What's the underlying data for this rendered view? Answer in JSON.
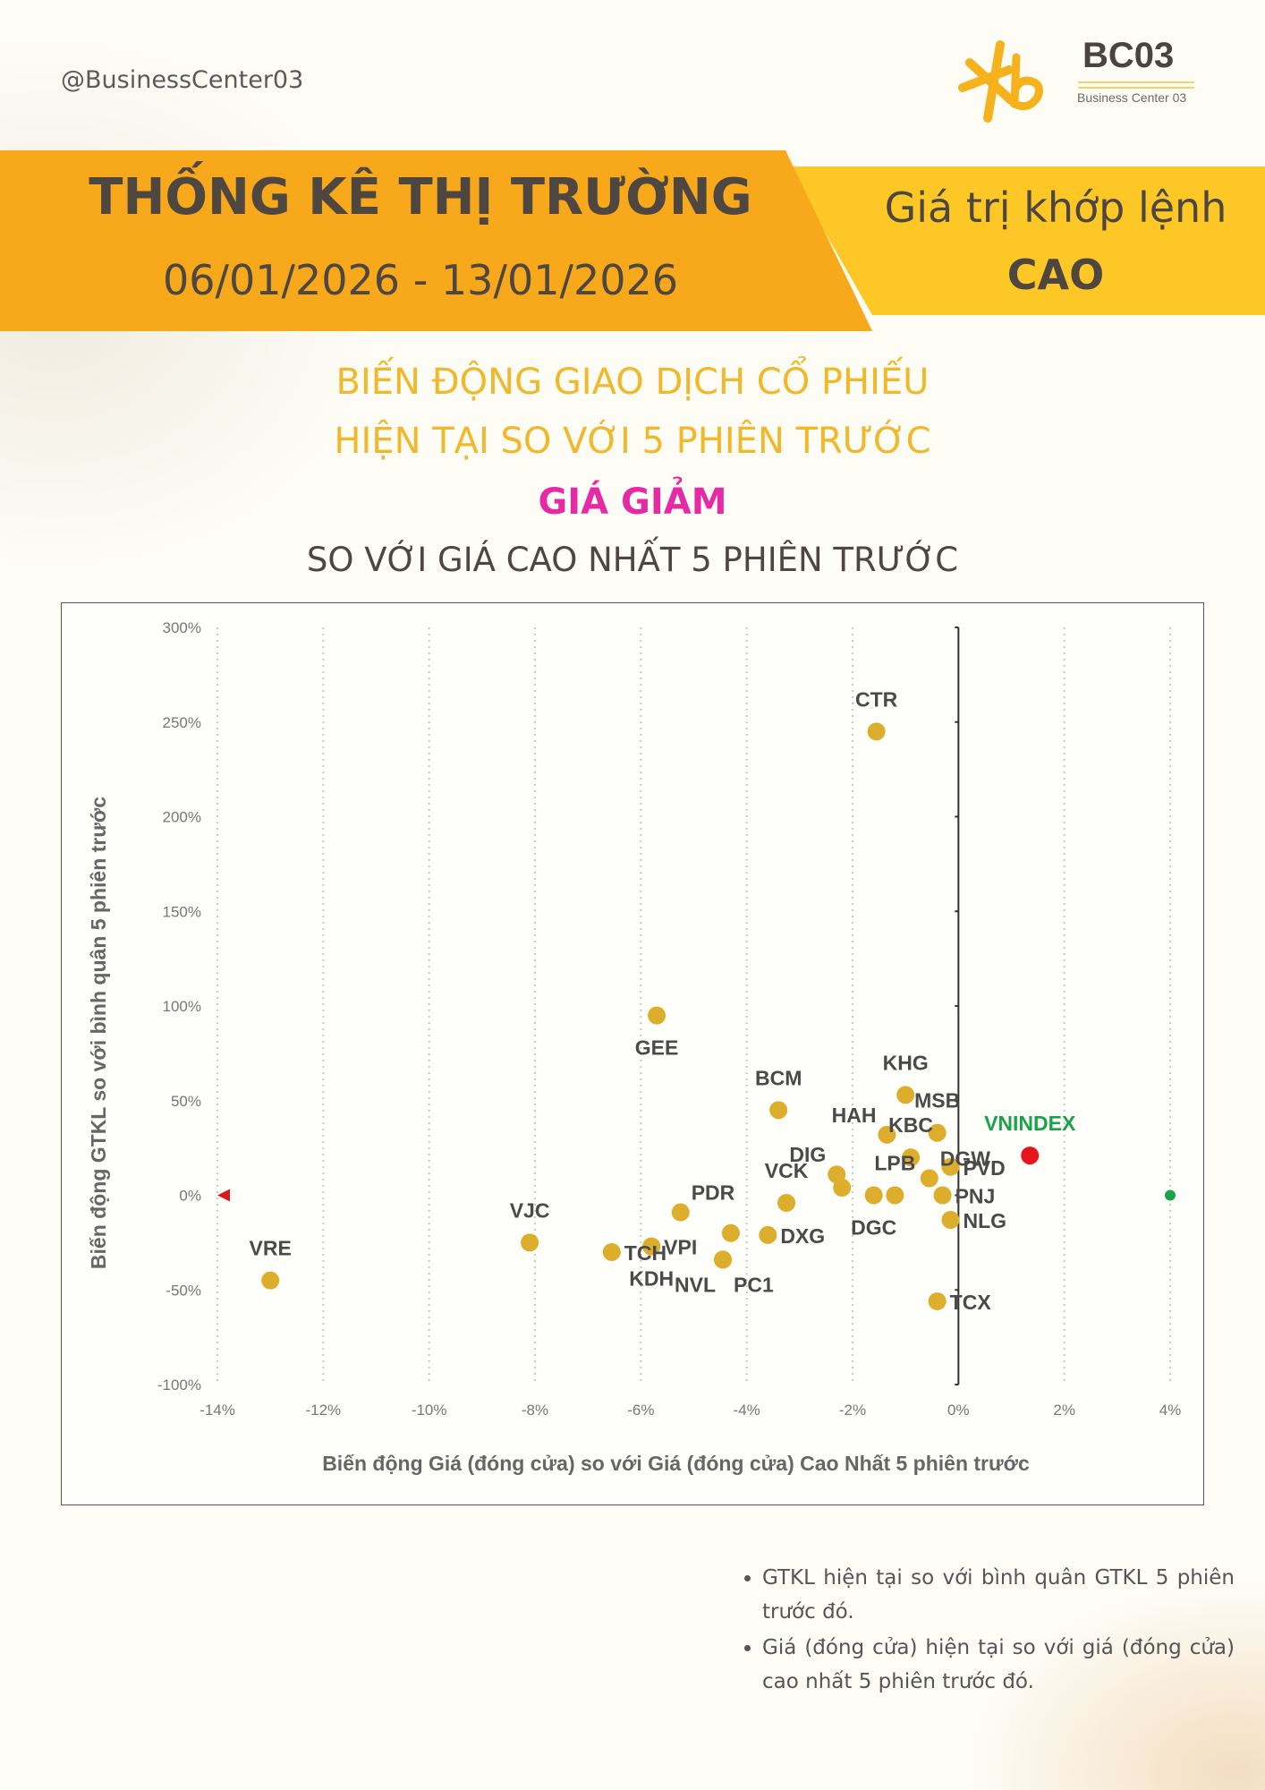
{
  "header": {
    "handle": "@BusinessCenter03",
    "logo_text": "BC03",
    "logo_subtext": "Business Center 03"
  },
  "banner": {
    "title": "THỐNG KÊ THỊ TRƯỜNG",
    "date_range": "06/01/2026 - 13/01/2026",
    "right_line1": "Giá trị khớp lệnh",
    "right_line2": "CAO"
  },
  "headings": {
    "line1": "BIẾN ĐỘNG GIAO DỊCH CỔ PHIẾU",
    "line2": "HIỆN TẠI SO VỚI 5 PHIÊN TRƯỚC",
    "highlight": "GIÁ GIẢM",
    "line4": "SO VỚI GIÁ CAO NHẤT 5 PHIÊN TRƯỚC"
  },
  "colors": {
    "banner_orange": "#f7a81b",
    "banner_yellow": "#fdc826",
    "point": "#dcae2c",
    "highlight_point": "#e8141c",
    "highlight_label": "#1aa34a",
    "heading_gold": "#f0b82a",
    "heading_pink": "#e52aa6"
  },
  "chart_data": {
    "type": "scatter",
    "title": "",
    "xlabel": "Biến động Giá (đóng cửa) so với Giá (đóng cửa) Cao Nhất 5 phiên trước",
    "ylabel": "Biến động GTKL so với bình quân 5 phiên trước",
    "xlim": [
      -14,
      4
    ],
    "ylim": [
      -100,
      300
    ],
    "x_ticks": [
      -14,
      -12,
      -10,
      -8,
      -6,
      -4,
      -2,
      0,
      2,
      4
    ],
    "x_tick_labels": [
      "-14%",
      "-12%",
      "-10%",
      "-8%",
      "-6%",
      "-4%",
      "-2%",
      "0%",
      "2%",
      "4%"
    ],
    "y_ticks": [
      -100,
      -50,
      0,
      50,
      100,
      150,
      200,
      250,
      300
    ],
    "y_tick_labels": [
      "-100%",
      "-50%",
      "0%",
      "50%",
      "100%",
      "150%",
      "200%",
      "250%",
      "300%"
    ],
    "grid": "vertical dotted",
    "units": "percent",
    "points": [
      {
        "label": "CTR",
        "x": -1.55,
        "y": 245,
        "label_pos": "above"
      },
      {
        "label": "GEE",
        "x": -5.7,
        "y": 95,
        "label_pos": "below"
      },
      {
        "label": "BCM",
        "x": -3.4,
        "y": 45,
        "label_pos": "above"
      },
      {
        "label": "KHG",
        "x": -1.0,
        "y": 53,
        "label_pos": "above"
      },
      {
        "label": "HAH",
        "x": -1.35,
        "y": 32,
        "label_pos": "above-left"
      },
      {
        "label": "MSB",
        "x": -0.4,
        "y": 33,
        "label_pos": "above"
      },
      {
        "label": "KBC",
        "x": -0.9,
        "y": 20,
        "label_pos": "above"
      },
      {
        "label": "DGW",
        "x": -0.55,
        "y": 9,
        "label_pos": "above-right"
      },
      {
        "label": "DIG",
        "x": -2.3,
        "y": 11,
        "label_pos": "above-left"
      },
      {
        "label": "LPB",
        "x": -1.2,
        "y": 0,
        "label_pos": "above"
      },
      {
        "label": "PVD",
        "x": -0.15,
        "y": 15,
        "label_pos": "right"
      },
      {
        "label": "PNJ",
        "x": -0.3,
        "y": 0,
        "label_pos": "right"
      },
      {
        "label": "NLG",
        "x": -0.15,
        "y": -13,
        "label_pos": "right"
      },
      {
        "label": "DGC",
        "x": -1.6,
        "y": 0,
        "label_pos": "below"
      },
      {
        "label": "",
        "x": -2.2,
        "y": 4,
        "label_pos": "none"
      },
      {
        "label": "VCK",
        "x": -3.25,
        "y": -4,
        "label_pos": "above"
      },
      {
        "label": "PDR",
        "x": -5.25,
        "y": -9,
        "label_pos": "above-right"
      },
      {
        "label": "DXG",
        "x": -3.6,
        "y": -21,
        "label_pos": "right"
      },
      {
        "label": "",
        "x": -4.3,
        "y": -20,
        "label_pos": "none"
      },
      {
        "label": "PC1",
        "x": -4.45,
        "y": -34,
        "label_pos": "below-right"
      },
      {
        "label": "NVL",
        "x": -4.45,
        "y": -34,
        "label_pos": "below-left"
      },
      {
        "label": "VPI",
        "x": -5.8,
        "y": -27,
        "label_pos": "right"
      },
      {
        "label": "KDH",
        "x": -5.8,
        "y": -27,
        "label_pos": "below"
      },
      {
        "label": "TCH",
        "x": -6.55,
        "y": -30,
        "label_pos": "right"
      },
      {
        "label": "VJC",
        "x": -8.1,
        "y": -25,
        "label_pos": "above"
      },
      {
        "label": "VRE",
        "x": -13.0,
        "y": -45,
        "label_pos": "above"
      },
      {
        "label": "TCX",
        "x": -0.4,
        "y": -56,
        "label_pos": "right"
      },
      {
        "label": "VNINDEX",
        "x": 1.35,
        "y": 21,
        "label_pos": "above",
        "highlight": true
      }
    ]
  },
  "notes": [
    "GTKL hiện tại so với bình quân GTKL 5 phiên trước đó.",
    "Giá (đóng cửa) hiện tại so với giá (đóng cửa) cao nhất 5 phiên trước đó."
  ]
}
